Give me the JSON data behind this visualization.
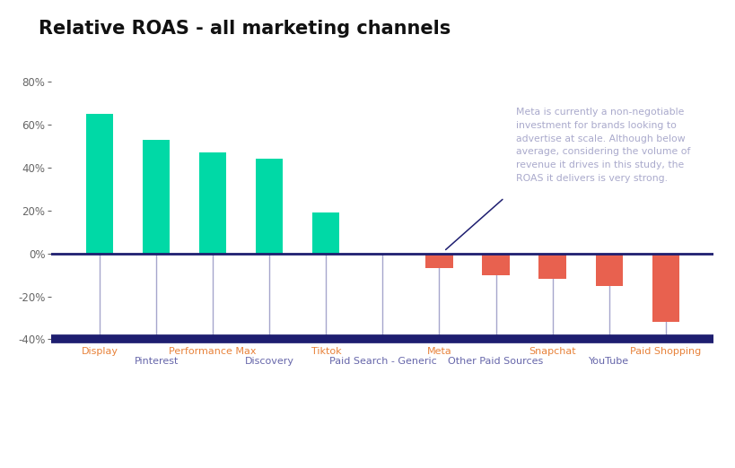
{
  "title": "Relative ROAS - all marketing channels",
  "categories": [
    "Display",
    "Pinterest",
    "Performance Max",
    "Discovery",
    "Tiktok",
    "Paid Search - Generic",
    "Meta",
    "Other Paid Sources",
    "Snapchat",
    "YouTube",
    "Paid Shopping"
  ],
  "values": [
    65,
    53,
    47,
    44,
    19,
    0,
    -7,
    -10,
    -12,
    -15,
    -32
  ],
  "teal_color": "#00d9a6",
  "red_color": "#e8614f",
  "zero_line_color": "#1e1e70",
  "bottom_line_color": "#1e1e70",
  "tick_line_color": "#8888bb",
  "label_color_top": "#e8823a",
  "label_color_bottom": "#6666aa",
  "annotation_color": "#aaaacc",
  "annotation_text": "Meta is currently a non-negotiable\ninvestment for brands looking to\nadvertise at scale. Although below\naverage, considering the volume of\nrevenue it drives in this study, the\nROAS it delivers is very strong.",
  "ylim": [
    -52,
    92
  ],
  "yticks": [
    -40,
    -20,
    0,
    20,
    40,
    60,
    80
  ],
  "background_color": "#ffffff",
  "title_fontsize": 15,
  "label_fontsize": 8
}
